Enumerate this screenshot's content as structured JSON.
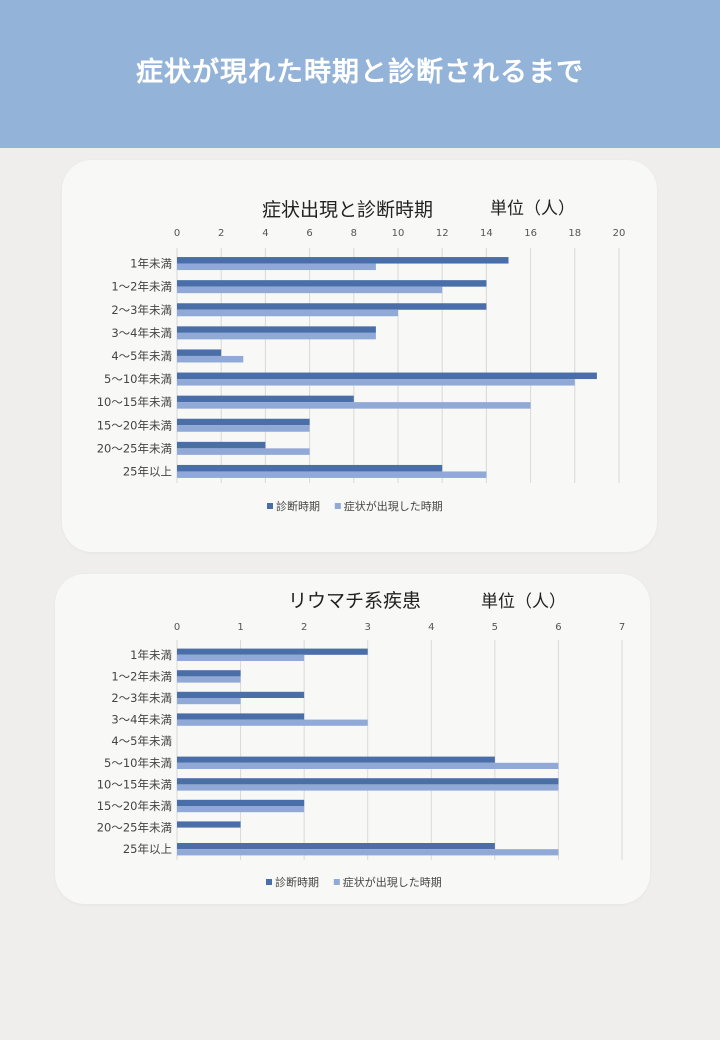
{
  "header": {
    "title": "症状が現れた時期と診断されるまで"
  },
  "colors": {
    "header_bg": "#93b3d9",
    "series_dark": "#4a6ea8",
    "series_light": "#91a9d6",
    "grid": "#d9d9d9"
  },
  "chart_data": [
    {
      "type": "bar",
      "orientation": "horizontal",
      "title": "症状出現と診断時期",
      "unit": "単位（人）",
      "categories": [
        "1年未満",
        "1～2年未満",
        "2～3年未満",
        "3～4年未満",
        "4～5年未満",
        "5～10年未満",
        "10～15年未満",
        "15～20年未満",
        "20～25年未満",
        "25年以上"
      ],
      "xlim": [
        0,
        20
      ],
      "ticks": [
        0,
        2,
        4,
        6,
        8,
        10,
        12,
        14,
        16,
        18,
        20
      ],
      "grid": true,
      "legend_position": "bottom",
      "series": [
        {
          "name": "診断時期",
          "color": "#4a6ea8",
          "values": [
            15,
            14,
            14,
            9,
            2,
            19,
            8,
            6,
            4,
            12
          ]
        },
        {
          "name": "症状が出現した時期",
          "color": "#91a9d6",
          "values": [
            9,
            12,
            10,
            9,
            3,
            18,
            16,
            6,
            6,
            14
          ]
        }
      ]
    },
    {
      "type": "bar",
      "orientation": "horizontal",
      "title": "リウマチ系疾患",
      "unit": "単位（人）",
      "categories": [
        "1年未満",
        "1～2年未満",
        "2～3年未満",
        "3～4年未満",
        "4～5年未満",
        "5～10年未満",
        "10～15年未満",
        "15～20年未満",
        "20～25年未満",
        "25年以上"
      ],
      "xlim": [
        0,
        7
      ],
      "ticks": [
        0,
        1,
        2,
        3,
        4,
        5,
        6,
        7
      ],
      "grid": true,
      "legend_position": "bottom",
      "series": [
        {
          "name": "診断時期",
          "color": "#4a6ea8",
          "values": [
            3,
            1,
            2,
            2,
            0,
            5,
            6,
            2,
            1,
            5
          ]
        },
        {
          "name": "症状が出現した時期",
          "color": "#91a9d6",
          "values": [
            2,
            1,
            1,
            3,
            0,
            6,
            6,
            2,
            0,
            6
          ]
        }
      ]
    }
  ]
}
